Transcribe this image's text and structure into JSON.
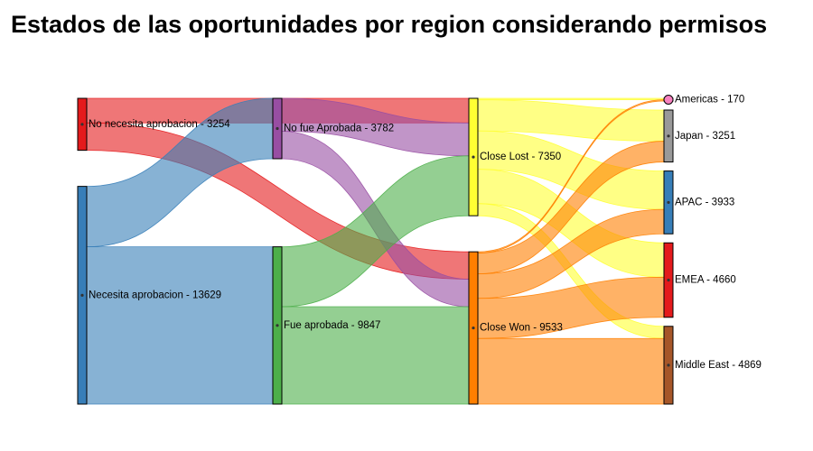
{
  "chart_data": {
    "type": "sankey",
    "title": "Estados de las oportunidades por region considerando permisos",
    "nodes": [
      {
        "id": "nna",
        "label": "No necesita aprobacion - 3254",
        "name": "No necesita aprobacion",
        "value": 3254,
        "column": 0,
        "color": "#e41a1c"
      },
      {
        "id": "na",
        "label": "Necesita aprobacion - 13629",
        "name": "Necesita aprobacion",
        "value": 13629,
        "column": 0,
        "color": "#377eb8"
      },
      {
        "id": "nfa",
        "label": "No fue Aprobada - 3782",
        "name": "No fue Aprobada",
        "value": 3782,
        "column": 1,
        "color": "#984ea3"
      },
      {
        "id": "fa",
        "label": "Fue aprobada - 9847",
        "name": "Fue aprobada",
        "value": 9847,
        "column": 1,
        "color": "#4daf4a"
      },
      {
        "id": "cl",
        "label": "Close Lost - 7350",
        "name": "Close Lost",
        "value": 7350,
        "column": 2,
        "color": "#ffff33"
      },
      {
        "id": "cw",
        "label": "Close Won - 9533",
        "name": "Close Won",
        "value": 9533,
        "column": 2,
        "color": "#ff7f00"
      },
      {
        "id": "am",
        "label": "Americas - 170",
        "name": "Americas",
        "value": 170,
        "column": 3,
        "color": "#f781bf"
      },
      {
        "id": "jp",
        "label": "Japan - 3251",
        "name": "Japan",
        "value": 3251,
        "column": 3,
        "color": "#999999"
      },
      {
        "id": "ap",
        "label": "APAC - 3933",
        "name": "APAC",
        "value": 3933,
        "column": 3,
        "color": "#377eb8"
      },
      {
        "id": "em",
        "label": "EMEA - 4660",
        "name": "EMEA",
        "value": 4660,
        "column": 3,
        "color": "#e41a1c"
      },
      {
        "id": "me",
        "label": "Middle East - 4869",
        "name": "Middle East",
        "value": 4869,
        "column": 3,
        "color": "#a65628"
      }
    ],
    "links": [
      {
        "source": "nna",
        "target": "cl",
        "value": 1540
      },
      {
        "source": "nna",
        "target": "cw",
        "value": 1714
      },
      {
        "source": "na",
        "target": "nfa",
        "value": 3782
      },
      {
        "source": "na",
        "target": "fa",
        "value": 9847
      },
      {
        "source": "nfa",
        "target": "cl",
        "value": 2060
      },
      {
        "source": "nfa",
        "target": "cw",
        "value": 1722
      },
      {
        "source": "fa",
        "target": "cl",
        "value": 3750
      },
      {
        "source": "fa",
        "target": "cw",
        "value": 6097
      },
      {
        "source": "cl",
        "target": "am",
        "value": 90
      },
      {
        "source": "cl",
        "target": "jp",
        "value": 1950
      },
      {
        "source": "cl",
        "target": "ap",
        "value": 2400
      },
      {
        "source": "cl",
        "target": "em",
        "value": 2150
      },
      {
        "source": "cl",
        "target": "me",
        "value": 760
      },
      {
        "source": "cw",
        "target": "am",
        "value": 80
      },
      {
        "source": "cw",
        "target": "jp",
        "value": 1301
      },
      {
        "source": "cw",
        "target": "ap",
        "value": 1533
      },
      {
        "source": "cw",
        "target": "em",
        "value": 2510
      },
      {
        "source": "cw",
        "target": "me",
        "value": 4109
      }
    ]
  }
}
